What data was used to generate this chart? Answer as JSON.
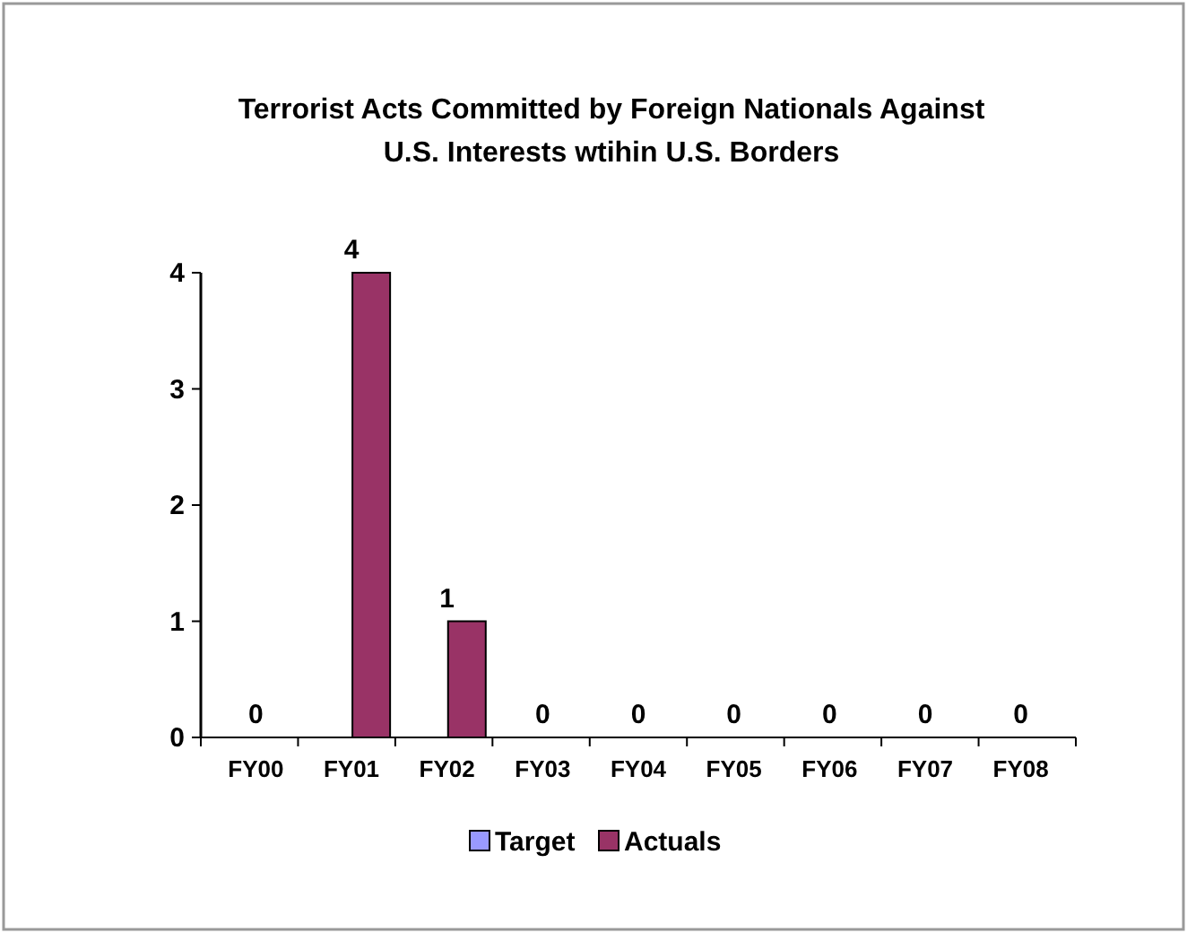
{
  "chart_data": {
    "type": "bar",
    "title": "Terrorist Acts Committed by Foreign Nationals Against U.S. Interests wtihin U.S. Borders",
    "categories": [
      "FY00",
      "FY01",
      "FY02",
      "FY03",
      "FY04",
      "FY05",
      "FY06",
      "FY07",
      "FY08"
    ],
    "series": [
      {
        "name": "Target",
        "color": "#9999ff",
        "values": [
          null,
          null,
          null,
          null,
          null,
          null,
          null,
          0,
          0
        ]
      },
      {
        "name": "Actuals",
        "color": "#993366",
        "values": [
          0,
          4,
          1,
          0,
          0,
          0,
          0,
          null,
          null
        ]
      }
    ],
    "ylim": [
      0,
      4
    ],
    "yticks": [
      0,
      1,
      2,
      3,
      4
    ],
    "data_labels": true,
    "legend": "bottom",
    "grid": false
  }
}
